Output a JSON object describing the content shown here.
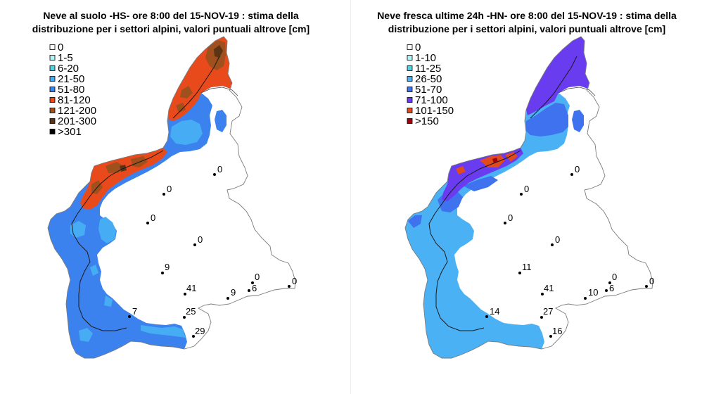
{
  "panels": [
    {
      "title_line1": "Neve al suolo -HS- ore 8:00 del 15-NOV-19 : stima della",
      "title_line2": "distribuzione per i settori alpini, valori puntuali altrove [cm]",
      "legend": [
        {
          "label": "0",
          "color": "#ffffff"
        },
        {
          "label": "1-5",
          "color": "#b4f4f4"
        },
        {
          "label": "6-20",
          "color": "#50d2e4"
        },
        {
          "label": "21-50",
          "color": "#46acf4"
        },
        {
          "label": "51-80",
          "color": "#3c82ee"
        },
        {
          "label": "81-120",
          "color": "#e84a1c"
        },
        {
          "label": "121-200",
          "color": "#a0501c"
        },
        {
          "label": "201-300",
          "color": "#5a3414"
        },
        {
          "label": ">301",
          "color": "#000000"
        }
      ],
      "stations": [
        "0",
        "0",
        "0",
        "0",
        "9",
        "41",
        "0",
        "6",
        "9",
        "0",
        "7",
        "25",
        "29"
      ]
    },
    {
      "title_line1": "Neve fresca ultime 24h -HN- ore 8:00 del 15-NOV-19 : stima della",
      "title_line2": "distribuzione per i settori alpini, valori puntuali altrove [cm]",
      "legend": [
        {
          "label": "0",
          "color": "#ffffff"
        },
        {
          "label": "1-10",
          "color": "#b4f4f4"
        },
        {
          "label": "11-25",
          "color": "#50d2e4"
        },
        {
          "label": "26-50",
          "color": "#4ab2f4"
        },
        {
          "label": "51-70",
          "color": "#3f72ee"
        },
        {
          "label": "71-100",
          "color": "#6a3cf0"
        },
        {
          "label": "101-150",
          "color": "#e04a1e"
        },
        {
          "label": ">150",
          "color": "#a00010"
        }
      ],
      "stations": [
        "0",
        "0",
        "0",
        "0",
        "11",
        "41",
        "0",
        "6",
        "10",
        "0",
        "14",
        "27",
        "16"
      ]
    }
  ]
}
